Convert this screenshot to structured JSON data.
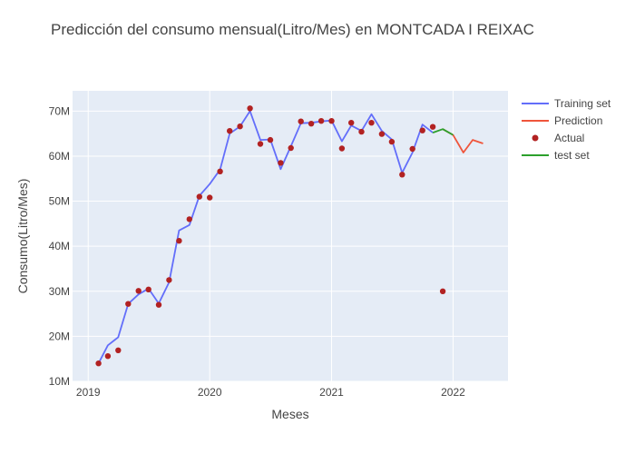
{
  "chart_data": {
    "type": "line",
    "title": "Predicción del consumo mensual(Litro/Mes) en MONTCADA I REIXAC",
    "xlabel": "Meses",
    "ylabel": "Consumo(Litro/Mes)",
    "xlim": [
      "2018-11-15",
      "2022-06-15"
    ],
    "ylim": [
      10000000,
      74500000
    ],
    "x_ticks": [
      {
        "date": "2019-01-01",
        "label": "2019"
      },
      {
        "date": "2020-01-01",
        "label": "2020"
      },
      {
        "date": "2021-01-01",
        "label": "2021"
      },
      {
        "date": "2022-01-01",
        "label": "2022"
      }
    ],
    "y_ticks": [
      {
        "value": 10000000,
        "label": "10M"
      },
      {
        "value": 20000000,
        "label": "20M"
      },
      {
        "value": 30000000,
        "label": "30M"
      },
      {
        "value": 40000000,
        "label": "40M"
      },
      {
        "value": 50000000,
        "label": "50M"
      },
      {
        "value": 60000000,
        "label": "60M"
      },
      {
        "value": 70000000,
        "label": "70M"
      }
    ],
    "grid": true,
    "legend_position": "right",
    "series": [
      {
        "name": "Training set",
        "mode": "line",
        "color": "#636efa",
        "x": [
          "2019-02-01",
          "2019-03-01",
          "2019-04-01",
          "2019-05-01",
          "2019-06-01",
          "2019-07-01",
          "2019-08-01",
          "2019-09-01",
          "2019-10-01",
          "2019-11-01",
          "2019-12-01",
          "2020-01-01",
          "2020-02-01",
          "2020-03-01",
          "2020-04-01",
          "2020-05-01",
          "2020-06-01",
          "2020-07-01",
          "2020-08-01",
          "2020-09-01",
          "2020-10-01",
          "2020-11-01",
          "2020-12-01",
          "2021-01-01",
          "2021-02-01",
          "2021-03-01",
          "2021-04-01",
          "2021-05-01",
          "2021-06-01",
          "2021-07-01",
          "2021-08-01",
          "2021-09-01",
          "2021-10-01",
          "2021-11-01"
        ],
        "y": [
          14000000,
          18000000,
          19800000,
          27200000,
          29300000,
          30600000,
          27300000,
          32000000,
          43500000,
          44700000,
          51200000,
          53800000,
          57000000,
          65000000,
          66600000,
          70000000,
          63600000,
          63700000,
          57100000,
          62200000,
          67300000,
          67400000,
          67700000,
          67900000,
          63300000,
          66800000,
          65600000,
          69300000,
          65600000,
          63700000,
          56300000,
          60800000,
          67000000,
          65200000
        ]
      },
      {
        "name": "Prediction",
        "mode": "line",
        "color": "#ef553b",
        "x": [
          "2021-12-01",
          "2022-01-01",
          "2022-02-01",
          "2022-03-01",
          "2022-04-01"
        ],
        "y": [
          66000000,
          64700000,
          60800000,
          63600000,
          62800000
        ]
      },
      {
        "name": "Actual",
        "mode": "markers",
        "color": "#b22222",
        "x": [
          "2019-02-01",
          "2019-03-01",
          "2019-04-01",
          "2019-05-01",
          "2019-06-01",
          "2019-07-01",
          "2019-08-01",
          "2019-09-01",
          "2019-10-01",
          "2019-11-01",
          "2019-12-01",
          "2020-01-01",
          "2020-02-01",
          "2020-03-01",
          "2020-04-01",
          "2020-05-01",
          "2020-06-01",
          "2020-07-01",
          "2020-08-01",
          "2020-09-01",
          "2020-10-01",
          "2020-11-01",
          "2020-12-01",
          "2021-01-01",
          "2021-02-01",
          "2021-03-01",
          "2021-04-01",
          "2021-05-01",
          "2021-06-01",
          "2021-07-01",
          "2021-08-01",
          "2021-09-01",
          "2021-10-01",
          "2021-11-01",
          "2021-12-01"
        ],
        "y": [
          14000000,
          15600000,
          16900000,
          27200000,
          30100000,
          30400000,
          27000000,
          32500000,
          41200000,
          46000000,
          51000000,
          50800000,
          56600000,
          65600000,
          66600000,
          70600000,
          62700000,
          63600000,
          58500000,
          61800000,
          67700000,
          67200000,
          67800000,
          67800000,
          61700000,
          67400000,
          65400000,
          67400000,
          64900000,
          63200000,
          55900000,
          61600000,
          65700000,
          66500000,
          30000000
        ]
      },
      {
        "name": "test set",
        "mode": "line",
        "color": "#2ca02c",
        "x": [
          "2021-11-01",
          "2021-12-01",
          "2022-01-01"
        ],
        "y": [
          65200000,
          66000000,
          64700000
        ]
      }
    ]
  }
}
